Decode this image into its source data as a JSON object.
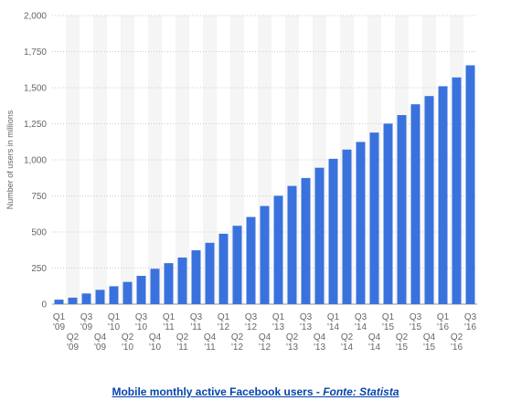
{
  "chart_data": {
    "type": "bar",
    "y_axis_label": "Number of users in millions",
    "categories": [
      "Q1 '09",
      "Q2 '09",
      "Q3 '09",
      "Q4 '09",
      "Q1 '10",
      "Q2 '10",
      "Q3 '10",
      "Q4 '10",
      "Q1 '11",
      "Q2 '11",
      "Q3 '11",
      "Q4 '11",
      "Q1 '12",
      "Q2 '12",
      "Q3 '12",
      "Q4 '12",
      "Q1 '13",
      "Q2 '13",
      "Q3 '13",
      "Q4 '13",
      "Q1 '14",
      "Q2 '14",
      "Q3 '14",
      "Q4 '14",
      "Q1 '15",
      "Q2 '15",
      "Q3 '15",
      "Q4 '15",
      "Q1 '16",
      "Q2 '16",
      "Q3 '16"
    ],
    "values": [
      31,
      45,
      74,
      99,
      124,
      154,
      196,
      245,
      284,
      323,
      373,
      425,
      488,
      543,
      604,
      680,
      751,
      819,
      874,
      945,
      1007,
      1071,
      1124,
      1189,
      1251,
      1310,
      1385,
      1442,
      1510,
      1571,
      1655
    ],
    "color": "#3a72dd",
    "ylim": [
      0,
      2000
    ],
    "yticks": [
      0,
      250,
      500,
      750,
      {
        "value": 1000,
        "label": "1,000"
      },
      {
        "value": 1250,
        "label": "1,250"
      },
      {
        "value": 1500,
        "label": "1,500"
      },
      {
        "value": 1750,
        "label": "1,750"
      },
      {
        "value": 2000,
        "label": "2,000"
      }
    ],
    "grid": true,
    "caption_text": "Mobile monthly active Facebook users - ",
    "caption_source": "Fonte: Statista"
  }
}
